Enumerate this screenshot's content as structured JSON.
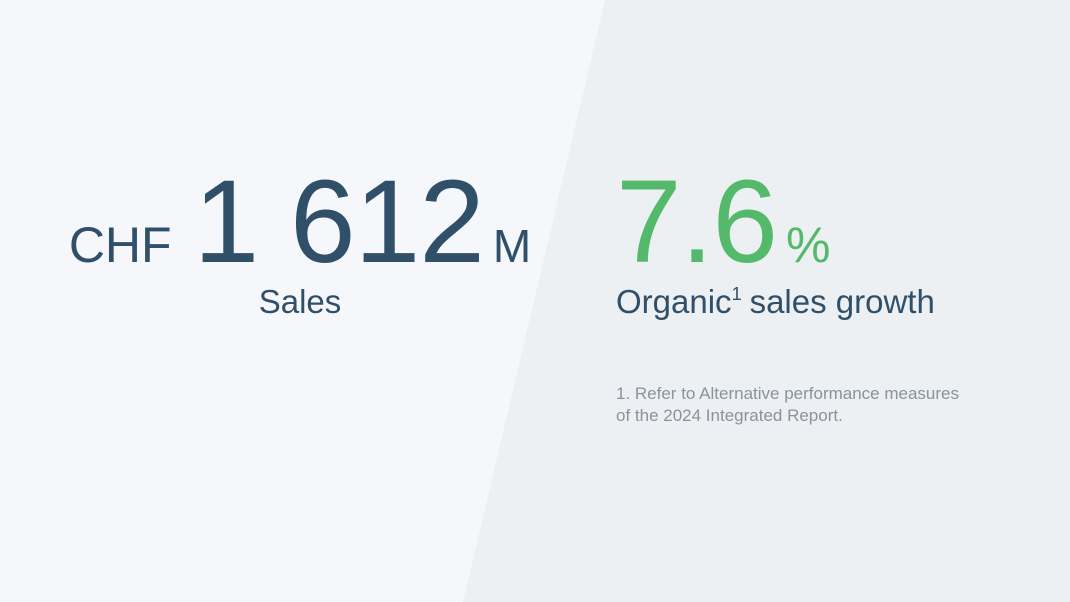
{
  "slide": {
    "left_stat": {
      "currency": "CHF",
      "value": "1 612",
      "unit": "M",
      "label": "Sales"
    },
    "right_stat": {
      "value": "7.6",
      "unit": "%",
      "label_word": "Organic",
      "label_footnote_marker": "1",
      "label_rest": "sales growth",
      "footnote_lines": [
        "1. Refer to Alternative performance measures",
        "of the 2024 Integrated Report."
      ]
    }
  },
  "colors": {
    "left_panel_bg": "#F6F7FB",
    "right_panel_bg": "#EDF0F2",
    "stat_dark_blue": "#30506A",
    "stat_green": "#55B96C",
    "footnote_grey": "#8A929E"
  }
}
